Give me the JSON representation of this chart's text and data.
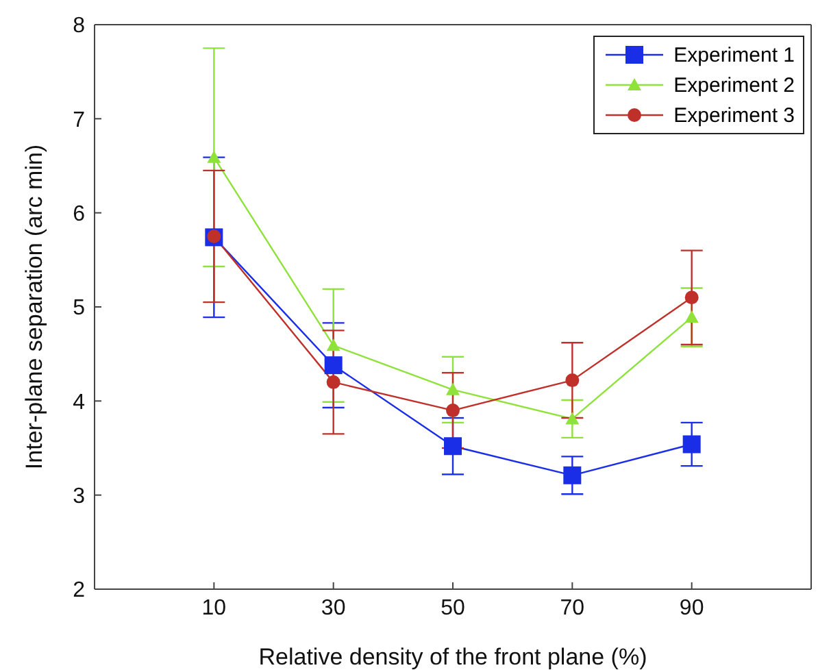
{
  "chart_data": {
    "type": "line",
    "xlabel": "Relative density of the front plane (%)",
    "ylabel": "Inter-plane separation (arc min)",
    "x": [
      10,
      30,
      50,
      70,
      90
    ],
    "xlim": [
      -10,
      110
    ],
    "xticks": [
      10,
      30,
      50,
      70,
      90
    ],
    "ylim": [
      2,
      8
    ],
    "yticks": [
      2,
      3,
      4,
      5,
      6,
      7,
      8
    ],
    "legend": "top right",
    "grid": false,
    "series": [
      {
        "name": "Experiment 1",
        "color": "#1a2ee8",
        "marker": "square",
        "values": [
          5.74,
          4.38,
          3.52,
          3.21,
          3.54
        ],
        "errors": [
          0.85,
          0.45,
          0.3,
          0.2,
          0.23
        ]
      },
      {
        "name": "Experiment 2",
        "color": "#8ee23a",
        "marker": "triangle",
        "values": [
          6.59,
          4.59,
          4.12,
          3.81,
          4.89
        ],
        "errors": [
          1.16,
          0.6,
          0.35,
          0.2,
          0.31
        ]
      },
      {
        "name": "Experiment 3",
        "color": "#c0302a",
        "marker": "circle",
        "values": [
          5.75,
          4.2,
          3.9,
          4.22,
          5.1
        ],
        "errors": [
          0.7,
          0.55,
          0.4,
          0.4,
          0.5
        ]
      }
    ]
  }
}
